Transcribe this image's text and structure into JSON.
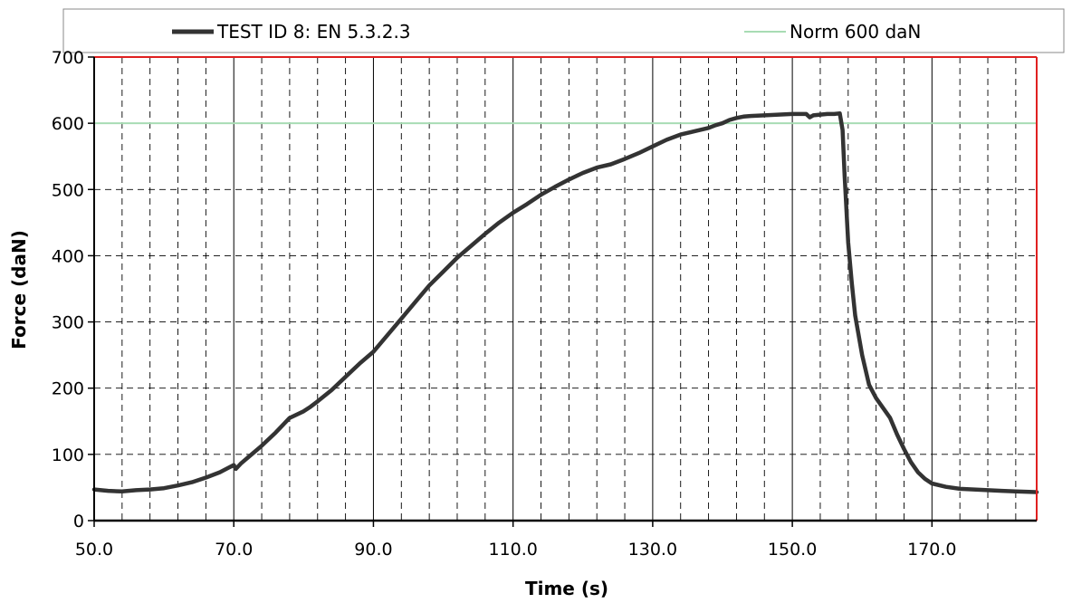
{
  "chart_data": {
    "type": "line",
    "xlabel": "Time (s)",
    "ylabel": "Force (daN)",
    "xlim": [
      50,
      185
    ],
    "ylim": [
      0,
      700
    ],
    "x_ticks": [
      "50.0",
      "70.0",
      "90.0",
      "110.0",
      "130.0",
      "150.0",
      "170.0"
    ],
    "x_tick_values": [
      50,
      70,
      90,
      110,
      130,
      150,
      170
    ],
    "y_ticks": [
      "0",
      "100",
      "200",
      "300",
      "400",
      "500",
      "600",
      "700"
    ],
    "y_tick_values": [
      0,
      100,
      200,
      300,
      400,
      500,
      600,
      700
    ],
    "minor_x_grid_step": 4,
    "grid": true,
    "legend_position": "top",
    "series": [
      {
        "name": "TEST ID 8: EN 5.3.2.3",
        "color": "#333333",
        "x": [
          50,
          51,
          52,
          54,
          56,
          58,
          60,
          62,
          64,
          66,
          68,
          70,
          70.3,
          71,
          72,
          74,
          76,
          78,
          80,
          81,
          82,
          84,
          86,
          88,
          90,
          92,
          94,
          96,
          98,
          100,
          102,
          104,
          106,
          108,
          110,
          112,
          114,
          116,
          118,
          120,
          122,
          124,
          126,
          128,
          130,
          132,
          134,
          136,
          138,
          139,
          140,
          141,
          142,
          143,
          144,
          146,
          148,
          150,
          152,
          152.5,
          153,
          154,
          155,
          156,
          156.8,
          157.2,
          157.5,
          158,
          158.5,
          159,
          160,
          161,
          162,
          163,
          164,
          165,
          166,
          167,
          168,
          169,
          170,
          172,
          174,
          176,
          178,
          180,
          182,
          185
        ],
        "y": [
          47,
          46,
          45,
          44,
          46,
          47,
          49,
          53,
          58,
          65,
          73,
          84,
          78,
          86,
          95,
          113,
          133,
          155,
          165,
          172,
          180,
          197,
          217,
          237,
          255,
          280,
          305,
          330,
          355,
          376,
          397,
          415,
          433,
          450,
          465,
          478,
          492,
          504,
          515,
          525,
          533,
          538,
          546,
          555,
          565,
          575,
          583,
          588,
          593,
          597,
          600,
          605,
          608,
          610,
          611,
          612,
          613,
          614,
          614,
          609,
          612,
          613,
          614,
          614,
          615,
          590,
          520,
          420,
          360,
          310,
          250,
          205,
          185,
          170,
          155,
          130,
          108,
          88,
          73,
          63,
          56,
          51,
          48,
          47,
          46,
          45,
          44,
          43
        ]
      },
      {
        "name": "Norm 600 daN",
        "color": "#a8dcb4",
        "x": [
          50,
          185
        ],
        "y": [
          600,
          600
        ]
      }
    ]
  }
}
